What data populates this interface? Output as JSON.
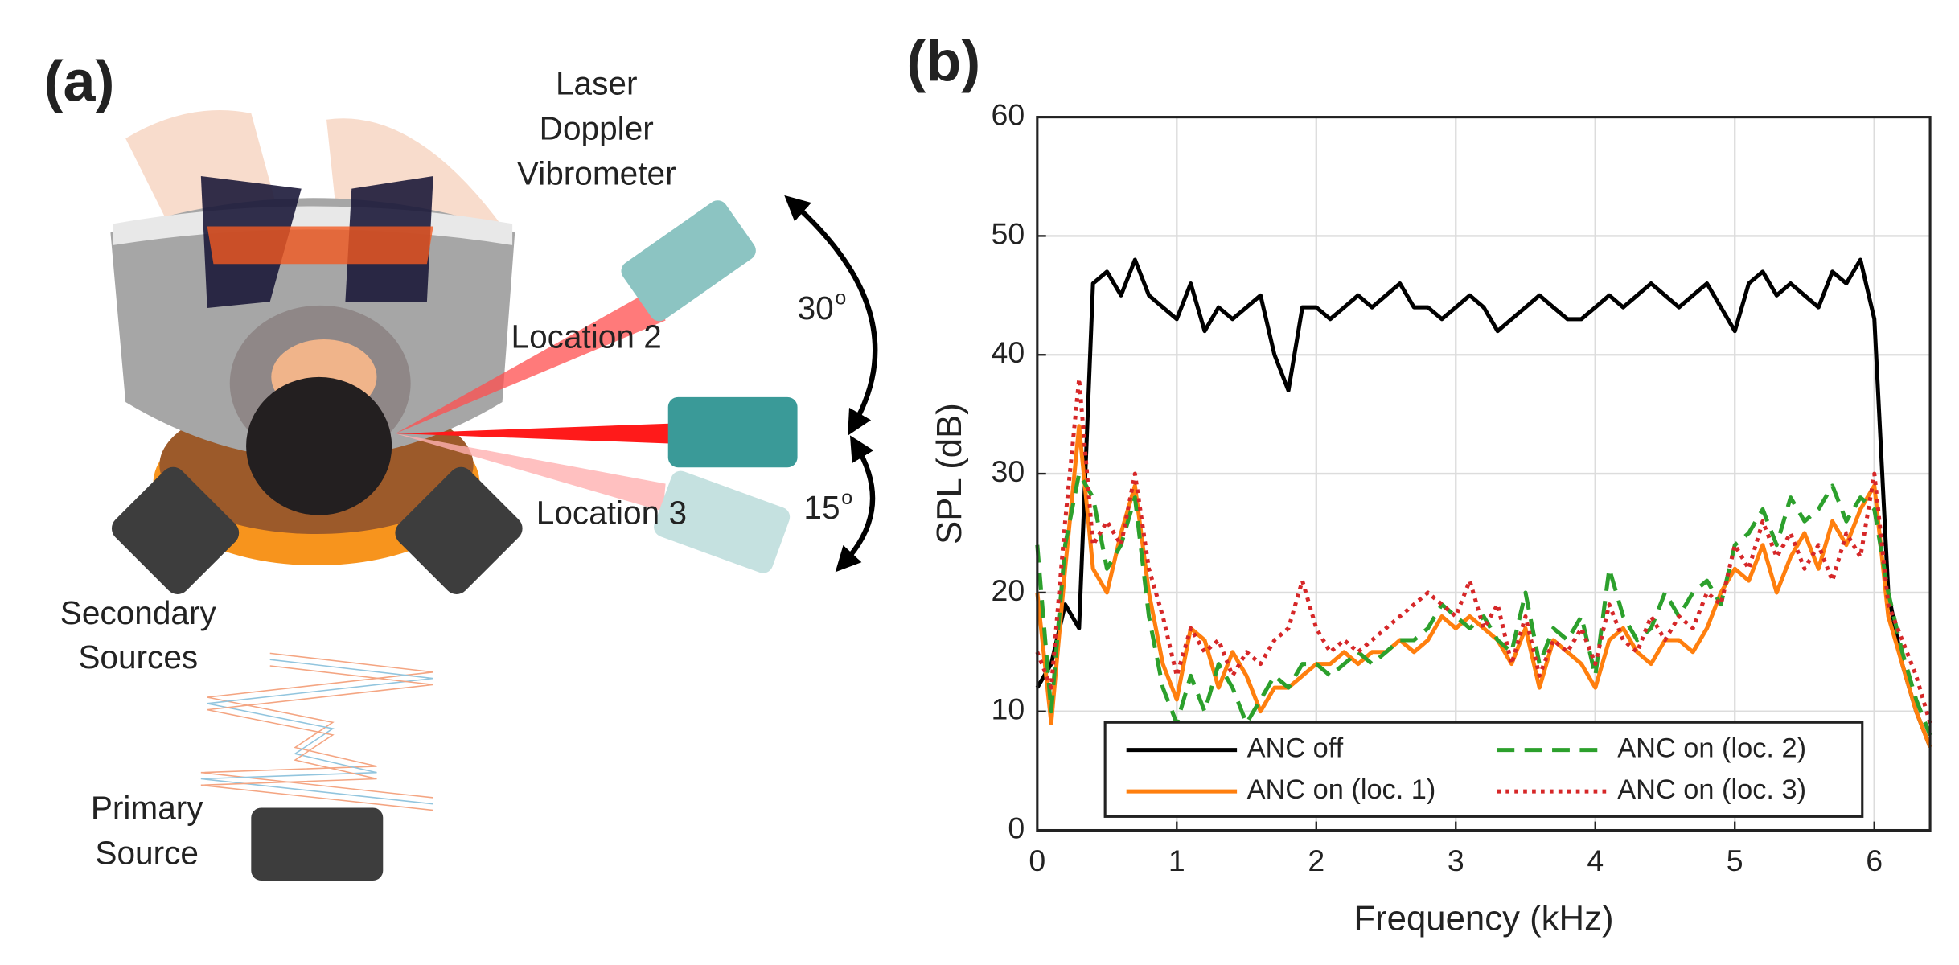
{
  "panel_a": {
    "label": "(a)",
    "laser_label": [
      "Laser",
      "Doppler",
      "Vibrometer"
    ],
    "location_labels": [
      "Location 2",
      "Location 3"
    ],
    "angles": [
      {
        "value": "30",
        "mark": "o"
      },
      {
        "value": "15",
        "mark": "o"
      }
    ],
    "secondary_label": [
      "Secondary",
      "Sources"
    ],
    "primary_label": [
      "Primary",
      "Source"
    ]
  },
  "panel_b": {
    "label": "(b)"
  },
  "chart_data": {
    "type": "line",
    "xlabel": "Frequency (kHz)",
    "ylabel": "SPL (dB)",
    "x": [
      0,
      0.1,
      0.2,
      0.3,
      0.4,
      0.5,
      0.6,
      0.7,
      0.8,
      0.9,
      1,
      1.1,
      1.2,
      1.3,
      1.4,
      1.5,
      1.6,
      1.7,
      1.8,
      1.9,
      2,
      2.1,
      2.2,
      2.3,
      2.4,
      2.5,
      2.6,
      2.7,
      2.8,
      2.9,
      3,
      3.1,
      3.2,
      3.3,
      3.4,
      3.5,
      3.6,
      3.7,
      3.8,
      3.9,
      4,
      4.1,
      4.2,
      4.3,
      4.4,
      4.5,
      4.6,
      4.7,
      4.8,
      4.9,
      5,
      5.1,
      5.2,
      5.3,
      5.4,
      5.5,
      5.6,
      5.7,
      5.8,
      5.9,
      6,
      6.1,
      6.2,
      6.3,
      6.4
    ],
    "series": [
      {
        "name": "ANC off",
        "color": "#000000",
        "style": "solid",
        "values": [
          12,
          14,
          19,
          17,
          46,
          47,
          45,
          48,
          45,
          44,
          43,
          46,
          42,
          44,
          43,
          44,
          45,
          40,
          37,
          44,
          44,
          43,
          44,
          45,
          44,
          45,
          46,
          44,
          44,
          43,
          44,
          45,
          44,
          42,
          43,
          44,
          45,
          44,
          43,
          43,
          44,
          45,
          44,
          45,
          46,
          45,
          44,
          45,
          46,
          44,
          42,
          46,
          47,
          45,
          46,
          45,
          44,
          47,
          46,
          48,
          43,
          20,
          14,
          10,
          7
        ]
      },
      {
        "name": "ANC on (loc. 1)",
        "color": "#ff7f0e",
        "style": "solid",
        "values": [
          20,
          9,
          22,
          34,
          22,
          20,
          25,
          29,
          20,
          14,
          11,
          17,
          16,
          12,
          15,
          13,
          10,
          12,
          12,
          13,
          14,
          14,
          15,
          14,
          15,
          15,
          16,
          15,
          16,
          18,
          17,
          18,
          17,
          16,
          14,
          17,
          12,
          16,
          15,
          14,
          12,
          16,
          17,
          15,
          14,
          16,
          16,
          15,
          17,
          20,
          22,
          21,
          24,
          20,
          23,
          25,
          22,
          26,
          24,
          27,
          29,
          18,
          14,
          10,
          7
        ]
      },
      {
        "name": "ANC on (loc. 2)",
        "color": "#2ca02c",
        "style": "dashed",
        "values": [
          24,
          10,
          24,
          30,
          28,
          22,
          24,
          28,
          18,
          12,
          9,
          13,
          10,
          14,
          12,
          9,
          11,
          13,
          12,
          14,
          14,
          13,
          14,
          15,
          14,
          15,
          16,
          16,
          17,
          19,
          18,
          17,
          18,
          16,
          15,
          20,
          14,
          17,
          16,
          18,
          13,
          22,
          18,
          16,
          17,
          20,
          18,
          20,
          21,
          19,
          24,
          25,
          27,
          24,
          28,
          26,
          27,
          29,
          26,
          28,
          27,
          20,
          15,
          11,
          8
        ]
      },
      {
        "name": "ANC on (loc. 3)",
        "color": "#d62728",
        "style": "dotted",
        "values": [
          15,
          12,
          26,
          38,
          24,
          26,
          24,
          30,
          22,
          18,
          13,
          17,
          15,
          16,
          13,
          15,
          14,
          16,
          17,
          21,
          17,
          15,
          16,
          15,
          16,
          17,
          18,
          19,
          20,
          19,
          18,
          21,
          17,
          19,
          14,
          18,
          13,
          16,
          15,
          17,
          14,
          19,
          16,
          15,
          18,
          16,
          18,
          17,
          20,
          19,
          24,
          22,
          26,
          23,
          25,
          22,
          24,
          21,
          25,
          23,
          30,
          19,
          16,
          13,
          9
        ]
      }
    ],
    "xlim": [
      0,
      6.4
    ],
    "xticks": [
      0,
      1,
      2,
      3,
      4,
      5,
      6
    ],
    "ylim": [
      0,
      60
    ],
    "yticks": [
      0,
      10,
      20,
      30,
      40,
      50,
      60
    ],
    "grid": true,
    "legend": "lower center",
    "legend_columns": 2
  }
}
